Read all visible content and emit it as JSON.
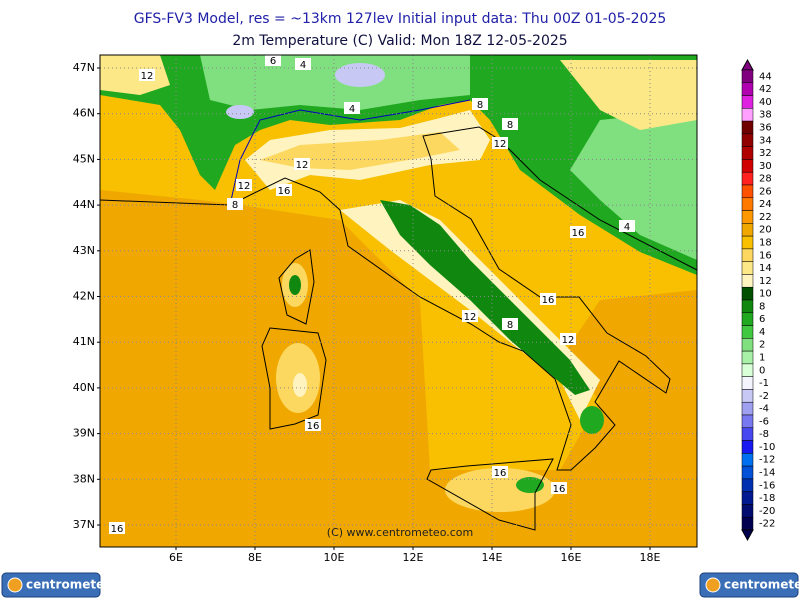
{
  "header": {
    "line1": "GFS-FV3 Model, res = ~13km 127lev   Initial input data: Thu 00Z 01-05-2025",
    "line2": "2m Temperature (C)  Valid: Mon 18Z 12-05-2025"
  },
  "map": {
    "lat_labels": [
      "47N",
      "46N",
      "45N",
      "44N",
      "43N",
      "42N",
      "41N",
      "40N",
      "39N",
      "38N",
      "37N"
    ],
    "lon_labels": [
      "6E",
      "8E",
      "10E",
      "12E",
      "14E",
      "16E",
      "18E"
    ],
    "contour_labels": [
      "12",
      "6",
      "4",
      "4",
      "8",
      "8",
      "12",
      "12",
      "12",
      "16",
      "8",
      "16",
      "4",
      "16",
      "12",
      "8",
      "12",
      "16",
      "16",
      "16",
      "16"
    ],
    "credit": "(C) www.centrometeo.com"
  },
  "legend": {
    "levels": [
      {
        "label": 44,
        "color": "#800080"
      },
      {
        "label": 42,
        "color": "#b000b0"
      },
      {
        "label": 40,
        "color": "#e020e0"
      },
      {
        "label": 38,
        "color": "#ffa0ff"
      },
      {
        "label": 36,
        "color": "#700000"
      },
      {
        "label": 34,
        "color": "#900000"
      },
      {
        "label": 32,
        "color": "#b00000"
      },
      {
        "label": 30,
        "color": "#d00000"
      },
      {
        "label": 28,
        "color": "#ff2020"
      },
      {
        "label": 26,
        "color": "#ff5000"
      },
      {
        "label": 24,
        "color": "#ff7800"
      },
      {
        "label": 22,
        "color": "#ff9800"
      },
      {
        "label": 20,
        "color": "#f0a800"
      },
      {
        "label": 18,
        "color": "#f8c000"
      },
      {
        "label": 16,
        "color": "#fcd860"
      },
      {
        "label": 14,
        "color": "#fde888"
      },
      {
        "label": 12,
        "color": "#fff4c0"
      },
      {
        "label": 10,
        "color": "#005000"
      },
      {
        "label": 8,
        "color": "#108810"
      },
      {
        "label": 6,
        "color": "#20a820"
      },
      {
        "label": 4,
        "color": "#40c840"
      },
      {
        "label": 2,
        "color": "#80e080"
      },
      {
        "label": 1,
        "color": "#a8f0a8"
      },
      {
        "label": 0,
        "color": "#d8ffd8"
      },
      {
        "label": -1,
        "color": "#f4f4ff"
      },
      {
        "label": -2,
        "color": "#c8c8f4"
      },
      {
        "label": -4,
        "color": "#a0a0f0"
      },
      {
        "label": -6,
        "color": "#7878f0"
      },
      {
        "label": -8,
        "color": "#4848f0"
      },
      {
        "label": -10,
        "color": "#1818f0"
      },
      {
        "label": -12,
        "color": "#0070f0"
      },
      {
        "label": -14,
        "color": "#0050d8"
      },
      {
        "label": -16,
        "color": "#0030b0"
      },
      {
        "label": -18,
        "color": "#001890"
      },
      {
        "label": -20,
        "color": "#000c70"
      },
      {
        "label": -22,
        "color": "#000050"
      }
    ]
  },
  "logos": [
    "centrometeo",
    "centrometeo"
  ]
}
